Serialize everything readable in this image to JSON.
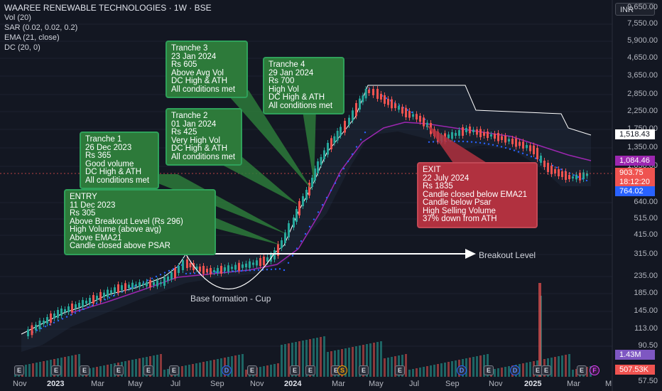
{
  "header": {
    "title": "WAAREE RENEWABLE TECHNOLOGIES · 1W · BSE",
    "indicators": [
      "Vol (20)",
      "SAR (0.02, 0.02, 0.2)",
      "EMA (21, close)",
      "DC (20, 0)"
    ]
  },
  "currency": "INR",
  "colors": {
    "background": "#131722",
    "up": "#26a69a",
    "down": "#ef5350",
    "ema": "#9c27b0",
    "sar": "#2962ff",
    "donchian": "#ffffff",
    "note_green": "#2d7a3a",
    "note_red": "#b1313f"
  },
  "price_axis": {
    "labels": [
      "9,650.00",
      "7,550.00",
      "5,900.00",
      "4,650.00",
      "3,650.00",
      "2,850.00",
      "2,250.00",
      "1,750.00",
      "1,350.00",
      "1,050.00",
      "640.00",
      "515.00",
      "415.00",
      "315.00",
      "235.00",
      "185.00",
      "145.00",
      "113.00",
      "90.50",
      "57.50"
    ],
    "badges": [
      {
        "text": "1,518.43",
        "bg": "#ffffff",
        "fg": "#131722"
      },
      {
        "text": "1,084.46",
        "bg": "#9c27b0",
        "fg": "#ffffff"
      },
      {
        "text": "903.75",
        "bg": "#ef5350",
        "fg": "#ffffff"
      },
      {
        "text": "18:12:20",
        "bg": "#ef5350",
        "fg": "#ffffff"
      },
      {
        "text": "764.02",
        "bg": "#2962ff",
        "fg": "#ffffff"
      },
      {
        "text": "1.43M",
        "bg": "#7e57c2",
        "fg": "#ffffff"
      },
      {
        "text": "507.53K",
        "bg": "#ef5350",
        "fg": "#ffffff"
      }
    ]
  },
  "time_axis": [
    {
      "label": "Nov",
      "bold": false
    },
    {
      "label": "2023",
      "bold": true
    },
    {
      "label": "Mar",
      "bold": false
    },
    {
      "label": "May",
      "bold": false
    },
    {
      "label": "Jul",
      "bold": false
    },
    {
      "label": "Sep",
      "bold": false
    },
    {
      "label": "Nov",
      "bold": false
    },
    {
      "label": "2024",
      "bold": true
    },
    {
      "label": "Mar",
      "bold": false
    },
    {
      "label": "May",
      "bold": false
    },
    {
      "label": "Jul",
      "bold": false
    },
    {
      "label": "Sep",
      "bold": false
    },
    {
      "label": "Nov",
      "bold": false
    },
    {
      "label": "2025",
      "bold": true
    },
    {
      "label": "Mar",
      "bold": false
    },
    {
      "label": "M",
      "bold": false
    }
  ],
  "events": [
    "E",
    "E",
    "E",
    "E",
    "E",
    "E",
    "D",
    "E",
    "E",
    "E",
    "E",
    "S",
    "E",
    "E",
    "D",
    "E",
    "D",
    "E",
    "E",
    "E",
    "F"
  ],
  "notes": {
    "tranche3": [
      "Tranche 3",
      "23 Jan 2024",
      "Rs 605",
      "Above Avg Vol",
      "DC High & ATH",
      "All conditions met"
    ],
    "tranche4": [
      "Tranche 4",
      "29 Jan 2024",
      "Rs 700",
      "High Vol",
      "DC High & ATH",
      "All conditions met"
    ],
    "tranche2": [
      "Tranche 2",
      "01 Jan 2024",
      "Rs 425",
      "Very High Vol",
      "DC High & ATH",
      "All conditions met"
    ],
    "tranche1": [
      "Tranche 1",
      "26 Dec 2023",
      "Rs 365",
      "Good volume",
      "DC High & ATH",
      "All conditions met"
    ],
    "entry": [
      "ENTRY",
      "11 Dec 2023",
      "Rs 305",
      "Above Breakout Level (Rs 296)",
      "High Volume (above avg)",
      "Above EMA21",
      "Candle closed above PSAR"
    ],
    "exit": [
      "EXIT",
      "22 July 2024",
      "Rs 1835",
      "Candle closed below EMA21",
      "Candle below Psar",
      "High Selling Volume",
      "37% down from ATH"
    ]
  },
  "annotations": {
    "breakout": "Breakout Level",
    "base": "Base formation - Cup"
  }
}
